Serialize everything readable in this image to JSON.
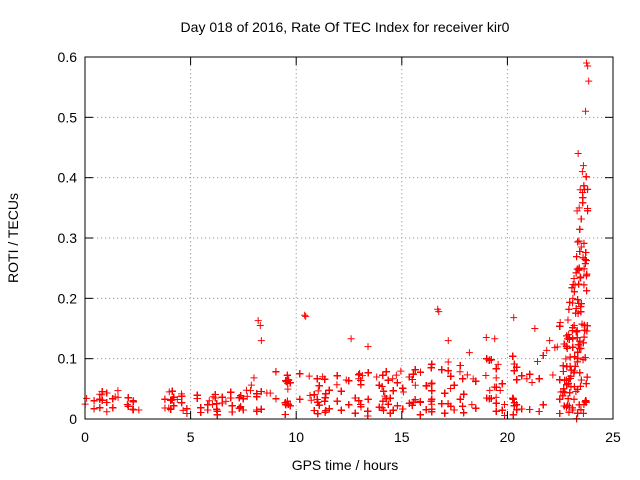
{
  "chart_data": {
    "type": "scatter",
    "title": "Day 018 of 2016, Rate Of TEC Index for receiver kir0",
    "xlabel": "GPS time / hours",
    "ylabel": "ROTI / TECUs",
    "xlim": [
      0,
      25
    ],
    "ylim": [
      0,
      0.6
    ],
    "xticks": [
      0,
      5,
      10,
      15,
      20,
      25
    ],
    "yticks": [
      0,
      0.1,
      0.2,
      0.3,
      0.4,
      0.5,
      0.6
    ],
    "xtick_labels": [
      "0",
      "5",
      "10",
      "15",
      "20",
      "25"
    ],
    "ytick_labels": [
      "0",
      "0.1",
      "0.2",
      "0.3",
      "0.4",
      "0.5",
      "0.6"
    ],
    "grid": true,
    "marker": "+",
    "color": "#ff0000",
    "x_range_of_data": [
      0,
      23.8
    ],
    "envelope": {
      "description": "approximate upper envelope of the dense ROTI point cloud",
      "x": [
        0,
        1,
        2,
        3,
        4,
        5,
        6,
        7,
        8,
        9,
        10,
        11,
        12,
        13,
        14,
        15,
        16,
        17,
        18,
        19,
        20,
        21,
        22,
        23,
        23.5
      ],
      "y": [
        0.045,
        0.05,
        0.048,
        0.045,
        0.05,
        0.04,
        0.04,
        0.045,
        0.07,
        0.08,
        0.08,
        0.07,
        0.08,
        0.08,
        0.08,
        0.08,
        0.09,
        0.1,
        0.09,
        0.1,
        0.1,
        0.12,
        0.14,
        0.18,
        0.3
      ]
    },
    "series": [
      {
        "name": "ROTI",
        "x": [
          8.2,
          8.3,
          8.35,
          10.4,
          10.45,
          12.6,
          13.4,
          16.7,
          16.75,
          17.2,
          18.2,
          19.0,
          19.4,
          20.3,
          21.3,
          22.0,
          22.5,
          22.9,
          23.1,
          23.3,
          23.35,
          23.4,
          23.45,
          23.5,
          23.55,
          23.6,
          23.65,
          23.7,
          23.75,
          23.8,
          23.85
        ],
        "y": [
          0.163,
          0.155,
          0.13,
          0.172,
          0.17,
          0.133,
          0.12,
          0.182,
          0.178,
          0.13,
          0.11,
          0.135,
          0.133,
          0.168,
          0.15,
          0.13,
          0.16,
          0.14,
          0.2,
          0.345,
          0.44,
          0.35,
          0.38,
          0.285,
          0.41,
          0.42,
          0.38,
          0.51,
          0.59,
          0.585,
          0.56
        ]
      }
    ]
  }
}
